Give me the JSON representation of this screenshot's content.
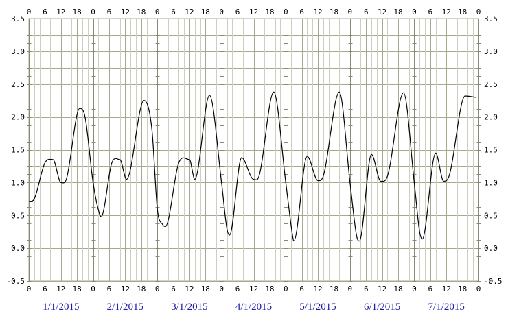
{
  "chart_data": {
    "type": "line",
    "title": "",
    "xlabel": "",
    "ylabel": "",
    "ylim": [
      -0.5,
      3.5
    ],
    "y_ticks": [
      "-0.5",
      "0.0",
      "0.5",
      "1.0",
      "1.5",
      "2.0",
      "2.5",
      "3.0",
      "3.5"
    ],
    "x_ticks": [
      "0",
      "6",
      "12",
      "18"
    ],
    "x_unit": "hours",
    "days": [
      "1/1/2015",
      "2/1/2015",
      "3/1/2015",
      "4/1/2015",
      "5/1/2015",
      "6/1/2015",
      "7/1/2015"
    ],
    "grid": true,
    "colors": {
      "line": "#000000",
      "grid": "#a8a890",
      "dates": "#1a1aa8"
    },
    "series": [
      {
        "x": [
          0,
          2,
          6,
          9,
          12,
          14,
          19,
          21,
          24,
          26,
          27,
          31,
          34,
          36.5,
          43,
          46,
          48,
          50,
          51,
          56,
          60,
          62,
          67.5,
          72,
          74,
          75,
          79.5,
          84,
          86,
          91.5,
          96,
          98.5,
          99,
          104,
          108,
          110,
          116,
          120,
          122.5,
          123.5,
          128,
          131.5,
          134,
          140,
          144,
          146,
          147,
          152,
          155,
          157,
          163,
          167
        ],
        "y": [
          0.71,
          0.75,
          1.3,
          1.35,
          1.0,
          1.05,
          2.13,
          2.0,
          1.0,
          0.58,
          0.48,
          1.3,
          1.35,
          1.05,
          2.25,
          1.8,
          0.6,
          0.36,
          0.33,
          1.3,
          1.35,
          1.05,
          2.33,
          1.0,
          0.3,
          0.2,
          1.38,
          1.05,
          1.1,
          2.38,
          1.0,
          0.2,
          0.11,
          1.4,
          1.03,
          1.1,
          2.38,
          1.0,
          0.18,
          0.11,
          1.43,
          1.02,
          1.1,
          2.37,
          1.0,
          0.25,
          0.14,
          1.45,
          1.02,
          1.1,
          2.32,
          2.3
        ]
      }
    ]
  }
}
